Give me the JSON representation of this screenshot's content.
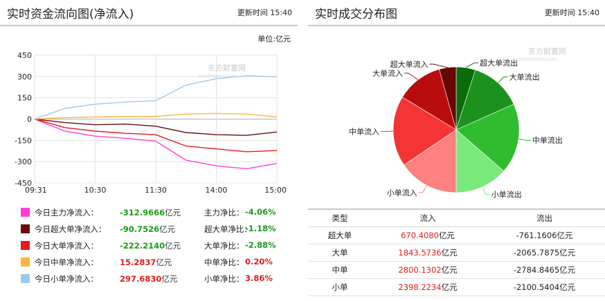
{
  "left": {
    "title": "实时资金流向图(净流入)",
    "update_label": "更新时间",
    "update_time": "15:40",
    "unit": "单位:亿元",
    "watermark_cn": "东方财富网",
    "watermark_en": "eastmoney.com"
  },
  "chart_data": [
    {
      "type": "line",
      "title": "实时资金流向图(净流入)",
      "ylabel": "",
      "xlabel": "",
      "ylim": [
        -450,
        450
      ],
      "yticks": [
        450,
        300,
        150,
        0,
        -150,
        -300,
        -450
      ],
      "xticks": [
        "09:31",
        "10:30",
        "11:30",
        "14:00",
        "15:00"
      ],
      "x": [
        0,
        30,
        60,
        90,
        120,
        150,
        180,
        210,
        240
      ],
      "series": [
        {
          "name": "今日主力净流入",
          "color": "#ff3ed8",
          "values": [
            0,
            -85,
            -120,
            -135,
            -155,
            -290,
            -330,
            -350,
            -313
          ]
        },
        {
          "name": "今日超大单净流入",
          "color": "#6b0b0b",
          "values": [
            0,
            -25,
            -40,
            -35,
            -50,
            -95,
            -110,
            -115,
            -91
          ]
        },
        {
          "name": "今日大单净流入",
          "color": "#e51a1a",
          "values": [
            0,
            -60,
            -85,
            -100,
            -110,
            -190,
            -210,
            -230,
            -222
          ]
        },
        {
          "name": "今日中单净流入",
          "color": "#ffb43a",
          "values": [
            0,
            10,
            15,
            18,
            20,
            35,
            40,
            35,
            15
          ]
        },
        {
          "name": "今日小单净流入",
          "color": "#9dc9ec",
          "values": [
            0,
            75,
            105,
            120,
            130,
            240,
            285,
            305,
            298
          ]
        }
      ]
    },
    {
      "type": "pie",
      "title": "实时成交分布图",
      "slices": [
        {
          "label": "超大单流出",
          "value": 761.1606,
          "color": "#0b6b0b"
        },
        {
          "label": "大单流出",
          "value": 2065.7875,
          "color": "#1d911d"
        },
        {
          "label": "中单流出",
          "value": 2784.8465,
          "color": "#2fbc2f"
        },
        {
          "label": "小单流出",
          "value": 2100.5404,
          "color": "#7be87b"
        },
        {
          "label": "小单流入",
          "value": 2398.2234,
          "color": "#ff8080"
        },
        {
          "label": "中单流入",
          "value": 2800.1302,
          "color": "#f43535"
        },
        {
          "label": "大单流入",
          "value": 1843.5736,
          "color": "#b90d0d"
        },
        {
          "label": "超大单流入",
          "value": 670.408,
          "color": "#6a0505"
        }
      ]
    }
  ],
  "legend": [
    {
      "label": "今日主力净流入：",
      "value": "-312.9666",
      "unit": "亿元",
      "ratio_label": "主力净比：",
      "ratio": "-4.06%",
      "color": "#ff3ed8",
      "sign": "neg"
    },
    {
      "label": "今日超大单净流入：",
      "value": "-90.7526",
      "unit": "亿元",
      "ratio_label": "超大单净比：",
      "ratio": "-1.18%",
      "color": "#6b0b0b",
      "sign": "neg"
    },
    {
      "label": "今日大单净流入：",
      "value": "-222.2140",
      "unit": "亿元",
      "ratio_label": "大单净比：",
      "ratio": "-2.88%",
      "color": "#e51a1a",
      "sign": "neg"
    },
    {
      "label": "今日中单净流入：",
      "value": "15.2837",
      "unit": "亿元",
      "ratio_label": "中单净比：",
      "ratio": "0.20%",
      "color": "#ffb43a",
      "sign": "pos"
    },
    {
      "label": "今日小单净流入：",
      "value": "297.6830",
      "unit": "亿元",
      "ratio_label": "小单净比：",
      "ratio": "3.86%",
      "color": "#9dc9ec",
      "sign": "pos"
    }
  ],
  "right": {
    "title": "实时成交分布图",
    "update_label": "更新时间",
    "update_time": "15:40",
    "watermark_cn": "东方财富网",
    "watermark_en": "eastmoney.com"
  },
  "table": {
    "headers": [
      "类型",
      "流入",
      "流出"
    ],
    "rows": [
      {
        "type": "超大单",
        "in": "670.4080",
        "out": "-761.1606",
        "unit": "亿元"
      },
      {
        "type": "大单",
        "in": "1843.5736",
        "out": "-2065.7875",
        "unit": "亿元"
      },
      {
        "type": "中单",
        "in": "2800.1302",
        "out": "-2784.8465",
        "unit": "亿元"
      },
      {
        "type": "小单",
        "in": "2398.2234",
        "out": "-2100.5404",
        "unit": "亿元"
      }
    ]
  }
}
